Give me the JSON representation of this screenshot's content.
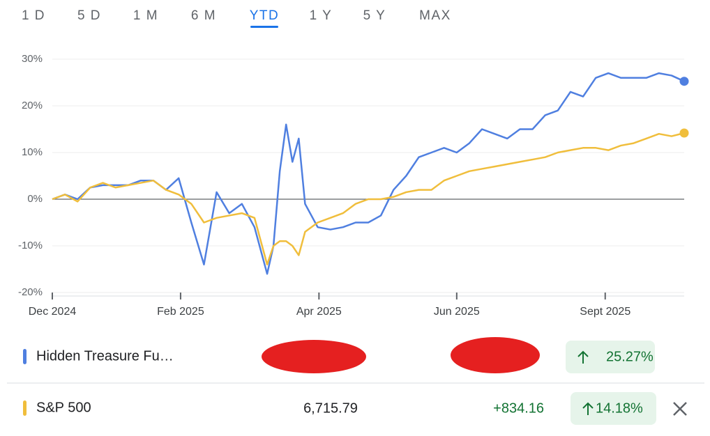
{
  "tabs": {
    "items": [
      "1 D",
      "5 D",
      "1 M",
      "6 M",
      "YTD",
      "1 Y",
      "5 Y",
      "MAX"
    ],
    "active": 4
  },
  "chart_data": {
    "type": "line",
    "x": [
      0,
      2,
      4,
      6,
      8,
      10,
      12,
      14,
      16,
      18,
      20,
      22,
      24,
      26,
      28,
      30,
      32,
      34,
      35,
      36,
      37,
      38,
      39,
      40,
      42,
      44,
      46,
      48,
      50,
      52,
      54,
      56,
      58,
      60,
      62,
      64,
      66,
      68,
      70,
      72,
      74,
      76,
      78,
      80,
      82,
      84,
      86,
      88,
      90,
      92,
      94,
      96,
      98,
      100
    ],
    "xlim": [
      0,
      100
    ],
    "xticks": [
      {
        "value": 0,
        "label": "Dec 2024"
      },
      {
        "value": 20.3,
        "label": "Feb 2025"
      },
      {
        "value": 42.2,
        "label": "Apr 2025"
      },
      {
        "value": 64,
        "label": "Jun 2025"
      },
      {
        "value": 87.5,
        "label": "Sept 2025"
      }
    ],
    "ylim": [
      -20,
      30
    ],
    "yticks": [
      {
        "value": -20,
        "label": "-20%"
      },
      {
        "value": -10,
        "label": "-10%"
      },
      {
        "value": 0,
        "label": "0%"
      },
      {
        "value": 10,
        "label": "10%"
      },
      {
        "value": 20,
        "label": "20%"
      },
      {
        "value": 30,
        "label": "30%"
      }
    ],
    "grid": true,
    "series": [
      {
        "name": "Hidden Treasure Fu…",
        "color": "#4f7fe0",
        "values": [
          0,
          1,
          0,
          2.5,
          3,
          3,
          3,
          4,
          4,
          2,
          4.5,
          -5,
          -14,
          1.5,
          -3,
          -1,
          -6,
          -16,
          -10,
          6,
          16,
          8,
          13,
          -1,
          -6,
          -6.5,
          -6,
          -5,
          -5,
          -3.5,
          2,
          5,
          9,
          10,
          11,
          10,
          12,
          15,
          14,
          13,
          15,
          15,
          18,
          19,
          23,
          22,
          26,
          27,
          26,
          26,
          26,
          27,
          26.5,
          25.27
        ]
      },
      {
        "name": "S&P 500",
        "color": "#f0be3c",
        "values": [
          0,
          1,
          -0.5,
          2.5,
          3.5,
          2.5,
          3,
          3.5,
          4,
          2,
          1,
          -1,
          -5,
          -4,
          -3.5,
          -3,
          -4,
          -14,
          -10,
          -9,
          -9,
          -10,
          -12,
          -7,
          -5,
          -4,
          -3,
          -1,
          0,
          0,
          0.5,
          1.5,
          2,
          2,
          4,
          5,
          6,
          6.5,
          7,
          7.5,
          8,
          8.5,
          9,
          10,
          10.5,
          11,
          11,
          10.5,
          11.5,
          12,
          13,
          14,
          13.5,
          14.18
        ]
      }
    ]
  },
  "rows": [
    {
      "percent": "25.27%"
    },
    {
      "price": "6,715.79",
      "change": "+834.16",
      "percent": "14.18%"
    }
  ]
}
